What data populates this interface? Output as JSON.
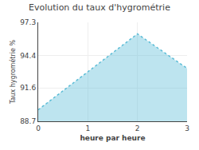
{
  "chart_data": {
    "type": "area",
    "title": "Evolution du taux d'hygrométrie",
    "xlabel": "heure par heure",
    "ylabel": "Taux hygrométrie %",
    "x": [
      0,
      1,
      2,
      3
    ],
    "values": [
      89.7,
      93.0,
      96.3,
      93.3
    ],
    "xlim": [
      0,
      3
    ],
    "ylim": [
      88.7,
      97.3
    ],
    "xticks": [
      0,
      1,
      2,
      3
    ],
    "yticks": [
      88.7,
      91.6,
      94.4,
      97.3
    ],
    "grid": true,
    "color": "#5bbcd6",
    "line_style": "dotted"
  }
}
